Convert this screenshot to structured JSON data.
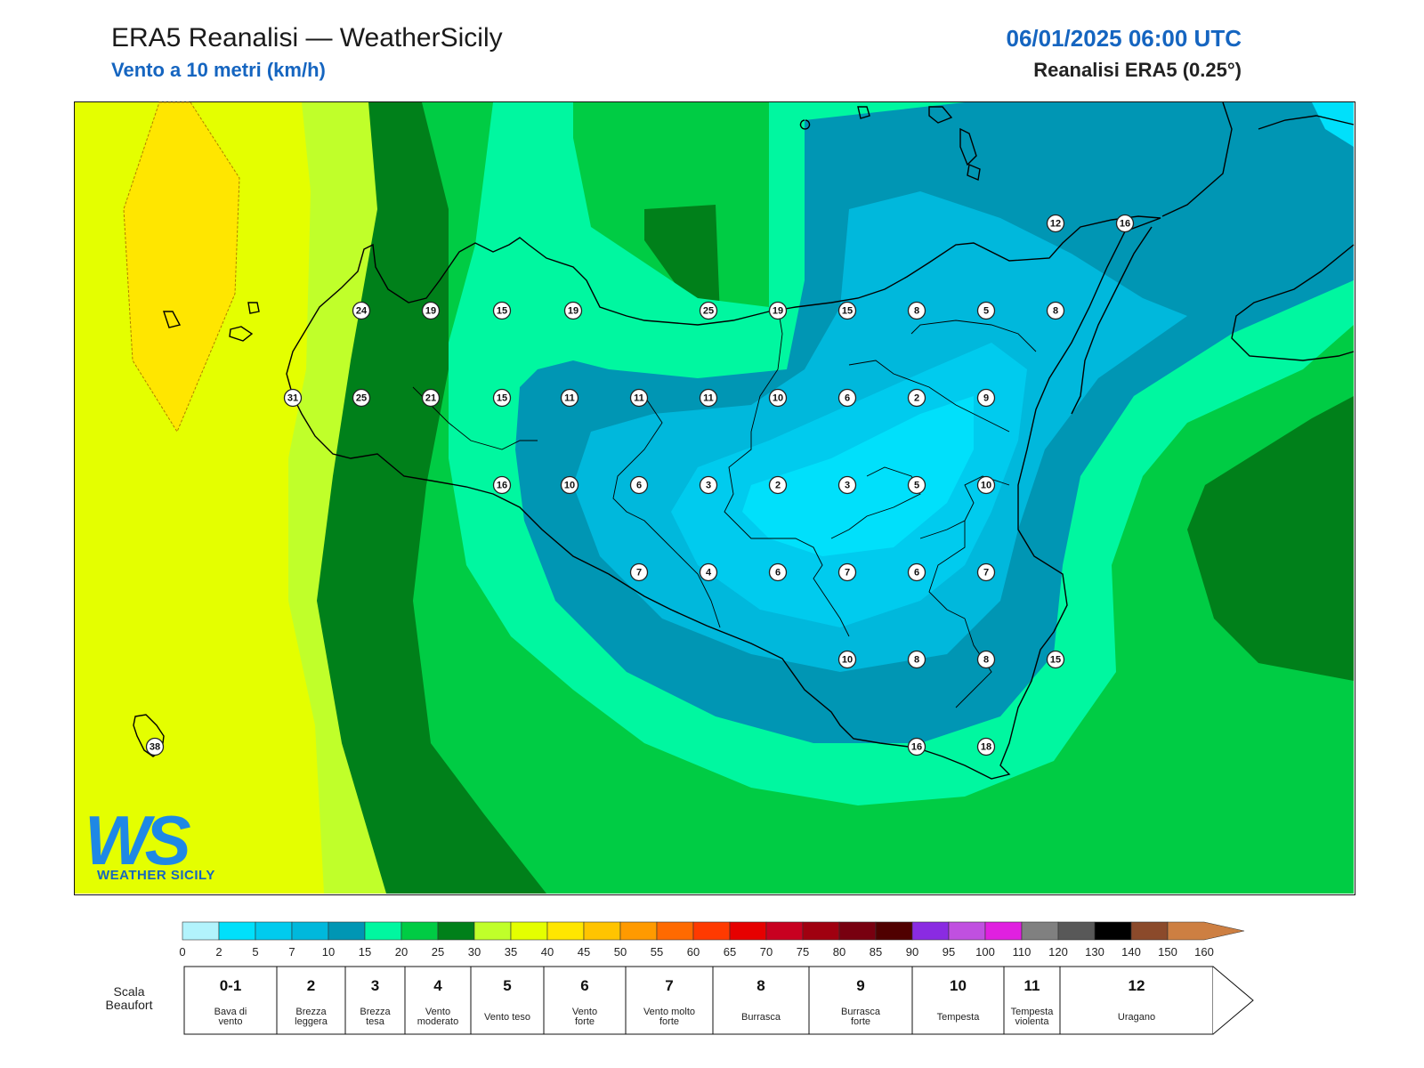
{
  "header": {
    "title": "ERA5 Reanalisi — WeatherSicily",
    "subtitle": "Vento a 10 metri (km/h)",
    "datetime": "06/01/2025 06:00 UTC",
    "source": "Reanalisi ERA5 (0.25°)"
  },
  "logo": {
    "letters": "WS",
    "brand": "WEATHER SICILY"
  },
  "map": {
    "stations": [
      {
        "v": "24"
      },
      {
        "v": "19"
      },
      {
        "v": "15"
      },
      {
        "v": "19"
      },
      {
        "v": "25"
      },
      {
        "v": "19"
      },
      {
        "v": "15"
      },
      {
        "v": "8"
      },
      {
        "v": "5"
      },
      {
        "v": "8"
      },
      {
        "v": "12"
      },
      {
        "v": "16"
      },
      {
        "v": "31"
      },
      {
        "v": "25"
      },
      {
        "v": "21"
      },
      {
        "v": "15"
      },
      {
        "v": "11"
      },
      {
        "v": "11"
      },
      {
        "v": "11"
      },
      {
        "v": "10"
      },
      {
        "v": "6"
      },
      {
        "v": "2"
      },
      {
        "v": "9"
      },
      {
        "v": "16"
      },
      {
        "v": "10"
      },
      {
        "v": "6"
      },
      {
        "v": "3"
      },
      {
        "v": "2"
      },
      {
        "v": "3"
      },
      {
        "v": "5"
      },
      {
        "v": "10"
      },
      {
        "v": "7"
      },
      {
        "v": "4"
      },
      {
        "v": "6"
      },
      {
        "v": "7"
      },
      {
        "v": "6"
      },
      {
        "v": "7"
      },
      {
        "v": "10"
      },
      {
        "v": "8"
      },
      {
        "v": "8"
      },
      {
        "v": "15"
      },
      {
        "v": "16"
      },
      {
        "v": "18"
      },
      {
        "v": "38"
      }
    ]
  },
  "colorbar": {
    "colors": [
      "#b2f3fc",
      "#00e0fb",
      "#00cbee",
      "#00b8dc",
      "#0096b4",
      "#00f7a0",
      "#00cc44",
      "#00801a",
      "#c0ff2a",
      "#e4ff00",
      "#ffe600",
      "#ffc400",
      "#ff9a00",
      "#ff6a00",
      "#ff3a00",
      "#e60000",
      "#c80020",
      "#a00010",
      "#780010",
      "#500000",
      "#8a2be2",
      "#c050e0",
      "#e020e0",
      "#808080",
      "#585858",
      "#000000",
      "#8b4a2b",
      "#cd7f42"
    ],
    "ticks": [
      "0",
      "2",
      "5",
      "7",
      "10",
      "15",
      "20",
      "25",
      "30",
      "35",
      "40",
      "45",
      "50",
      "55",
      "60",
      "65",
      "70",
      "75",
      "80",
      "85",
      "90",
      "95",
      "100",
      "110",
      "120",
      "130",
      "140",
      "150",
      "160"
    ]
  },
  "beaufort": {
    "label": "Scala Beaufort",
    "scale": [
      {
        "force": "0-1",
        "desc": "Bava di vento"
      },
      {
        "force": "2",
        "desc": "Brezza leggera"
      },
      {
        "force": "3",
        "desc": "Brezza tesa"
      },
      {
        "force": "4",
        "desc": "Vento moderato"
      },
      {
        "force": "5",
        "desc": "Vento teso"
      },
      {
        "force": "6",
        "desc": "Vento forte"
      },
      {
        "force": "7",
        "desc": "Vento molto forte"
      },
      {
        "force": "8",
        "desc": "Burrasca"
      },
      {
        "force": "9",
        "desc": "Burrasca forte"
      },
      {
        "force": "10",
        "desc": "Tempesta"
      },
      {
        "force": "11",
        "desc": "Tempesta violenta"
      },
      {
        "force": "12",
        "desc": "Uragano"
      }
    ]
  }
}
